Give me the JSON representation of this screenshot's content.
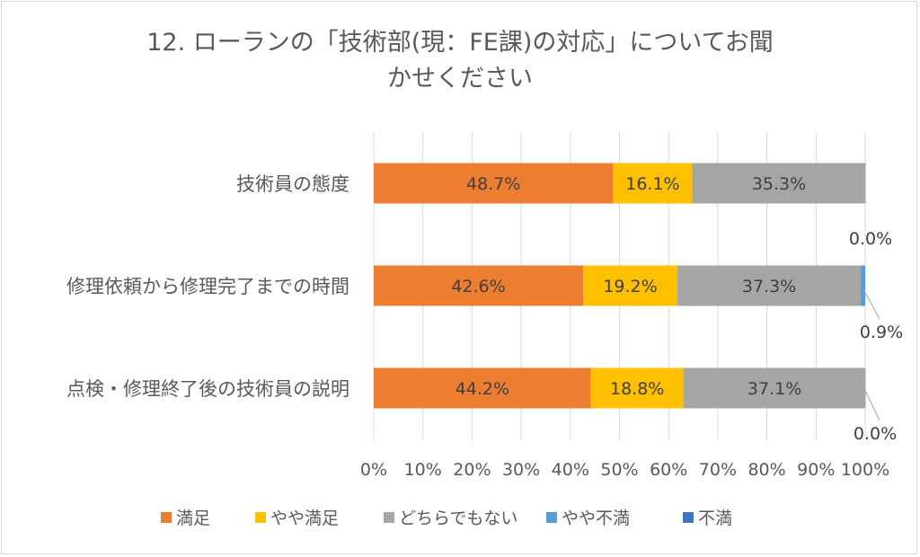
{
  "chart_data": {
    "type": "bar",
    "orientation": "horizontal",
    "stacked": "percent",
    "title_lines": [
      "12. ローランの「技術部(現：FE課)の対応」についてお聞",
      "かせください"
    ],
    "categories": [
      "技術員の態度",
      "修理依頼から修理完了までの時間",
      "点検・修理終了後の技術員の説明"
    ],
    "series": [
      {
        "name": "満足",
        "color": "#ED7D31",
        "values": [
          48.7,
          42.6,
          44.2
        ]
      },
      {
        "name": "やや満足",
        "color": "#FFC000",
        "values": [
          16.1,
          19.2,
          18.8
        ]
      },
      {
        "name": "どちらでもない",
        "color": "#A5A5A5",
        "values": [
          35.3,
          37.3,
          37.1
        ]
      },
      {
        "name": "やや不満",
        "color": "#5B9BD5",
        "values": [
          0.0,
          0.9,
          0.0
        ]
      },
      {
        "name": "不満",
        "color": "#4472C4",
        "values": [
          0.0,
          0.0,
          0.0
        ]
      }
    ],
    "data_labels": [
      [
        "48.7%",
        "16.1%",
        "35.3%",
        null,
        null
      ],
      [
        "42.6%",
        "19.2%",
        "37.3%",
        "0.9%",
        "0.0%"
      ],
      [
        "44.2%",
        "18.8%",
        "37.1%",
        "0.0%",
        null
      ]
    ],
    "x_ticks": [
      "0%",
      "10%",
      "20%",
      "30%",
      "40%",
      "50%",
      "60%",
      "70%",
      "80%",
      "90%",
      "100%"
    ],
    "xlim": [
      0,
      100
    ],
    "grid": true,
    "legend_position": "bottom"
  }
}
